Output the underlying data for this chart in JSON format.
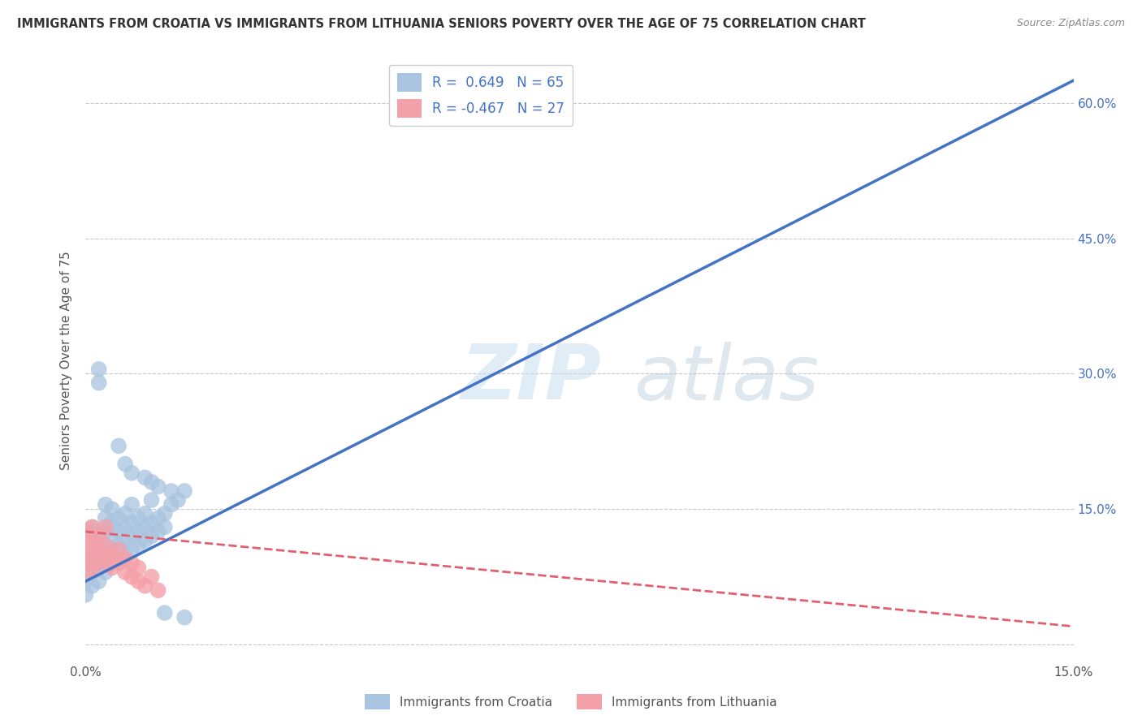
{
  "title": "IMMIGRANTS FROM CROATIA VS IMMIGRANTS FROM LITHUANIA SENIORS POVERTY OVER THE AGE OF 75 CORRELATION CHART",
  "source": "Source: ZipAtlas.com",
  "ylabel": "Seniors Poverty Over the Age of 75",
  "xlim": [
    0,
    0.15
  ],
  "ylim": [
    -0.02,
    0.65
  ],
  "xticks": [
    0.0,
    0.05,
    0.1,
    0.15
  ],
  "xtick_labels": [
    "0.0%",
    "",
    "",
    "15.0%"
  ],
  "ytick_labels_right": [
    "",
    "15.0%",
    "30.0%",
    "45.0%",
    "60.0%"
  ],
  "ytick_positions_right": [
    0.0,
    0.15,
    0.3,
    0.45,
    0.6
  ],
  "grid_color": "#c8c8c8",
  "background_color": "#ffffff",
  "croatia_color": "#a8c4e0",
  "lithuania_color": "#f4a0a8",
  "croatia_R": 0.649,
  "croatia_N": 65,
  "lithuania_R": -0.467,
  "lithuania_N": 27,
  "legend_label_croatia": "Immigrants from Croatia",
  "legend_label_lithuania": "Immigrants from Lithuania",
  "croatia_line": [
    0.0,
    0.07,
    0.15,
    0.625
  ],
  "lithuania_line": [
    0.0,
    0.125,
    0.15,
    0.02
  ],
  "scatter_croatia": [
    [
      0.0,
      0.055
    ],
    [
      0.0,
      0.07
    ],
    [
      0.0,
      0.09
    ],
    [
      0.0,
      0.1
    ],
    [
      0.001,
      0.065
    ],
    [
      0.001,
      0.08
    ],
    [
      0.001,
      0.1
    ],
    [
      0.001,
      0.115
    ],
    [
      0.001,
      0.125
    ],
    [
      0.001,
      0.13
    ],
    [
      0.002,
      0.07
    ],
    [
      0.002,
      0.085
    ],
    [
      0.002,
      0.1
    ],
    [
      0.002,
      0.115
    ],
    [
      0.002,
      0.125
    ],
    [
      0.002,
      0.29
    ],
    [
      0.003,
      0.08
    ],
    [
      0.003,
      0.095
    ],
    [
      0.003,
      0.11
    ],
    [
      0.003,
      0.125
    ],
    [
      0.003,
      0.14
    ],
    [
      0.003,
      0.155
    ],
    [
      0.004,
      0.09
    ],
    [
      0.004,
      0.105
    ],
    [
      0.004,
      0.12
    ],
    [
      0.004,
      0.135
    ],
    [
      0.004,
      0.15
    ],
    [
      0.005,
      0.095
    ],
    [
      0.005,
      0.11
    ],
    [
      0.005,
      0.125
    ],
    [
      0.005,
      0.14
    ],
    [
      0.006,
      0.1
    ],
    [
      0.006,
      0.115
    ],
    [
      0.006,
      0.13
    ],
    [
      0.006,
      0.145
    ],
    [
      0.007,
      0.105
    ],
    [
      0.007,
      0.12
    ],
    [
      0.007,
      0.135
    ],
    [
      0.007,
      0.155
    ],
    [
      0.008,
      0.11
    ],
    [
      0.008,
      0.125
    ],
    [
      0.008,
      0.14
    ],
    [
      0.009,
      0.115
    ],
    [
      0.009,
      0.13
    ],
    [
      0.009,
      0.145
    ],
    [
      0.01,
      0.12
    ],
    [
      0.01,
      0.135
    ],
    [
      0.01,
      0.16
    ],
    [
      0.011,
      0.125
    ],
    [
      0.011,
      0.14
    ],
    [
      0.012,
      0.13
    ],
    [
      0.012,
      0.145
    ],
    [
      0.013,
      0.155
    ],
    [
      0.013,
      0.17
    ],
    [
      0.014,
      0.16
    ],
    [
      0.015,
      0.17
    ],
    [
      0.002,
      0.305
    ],
    [
      0.005,
      0.22
    ],
    [
      0.006,
      0.2
    ],
    [
      0.007,
      0.19
    ],
    [
      0.009,
      0.185
    ],
    [
      0.01,
      0.18
    ],
    [
      0.011,
      0.175
    ],
    [
      0.012,
      0.035
    ],
    [
      0.015,
      0.03
    ]
  ],
  "scatter_lithuania": [
    [
      0.0,
      0.08
    ],
    [
      0.0,
      0.095
    ],
    [
      0.0,
      0.11
    ],
    [
      0.0,
      0.125
    ],
    [
      0.001,
      0.085
    ],
    [
      0.001,
      0.1
    ],
    [
      0.001,
      0.115
    ],
    [
      0.001,
      0.13
    ],
    [
      0.002,
      0.09
    ],
    [
      0.002,
      0.105
    ],
    [
      0.002,
      0.12
    ],
    [
      0.003,
      0.095
    ],
    [
      0.003,
      0.11
    ],
    [
      0.003,
      0.13
    ],
    [
      0.004,
      0.1
    ],
    [
      0.004,
      0.085
    ],
    [
      0.005,
      0.09
    ],
    [
      0.005,
      0.105
    ],
    [
      0.006,
      0.095
    ],
    [
      0.006,
      0.08
    ],
    [
      0.007,
      0.075
    ],
    [
      0.007,
      0.09
    ],
    [
      0.008,
      0.07
    ],
    [
      0.008,
      0.085
    ],
    [
      0.009,
      0.065
    ],
    [
      0.01,
      0.075
    ],
    [
      0.011,
      0.06
    ]
  ]
}
